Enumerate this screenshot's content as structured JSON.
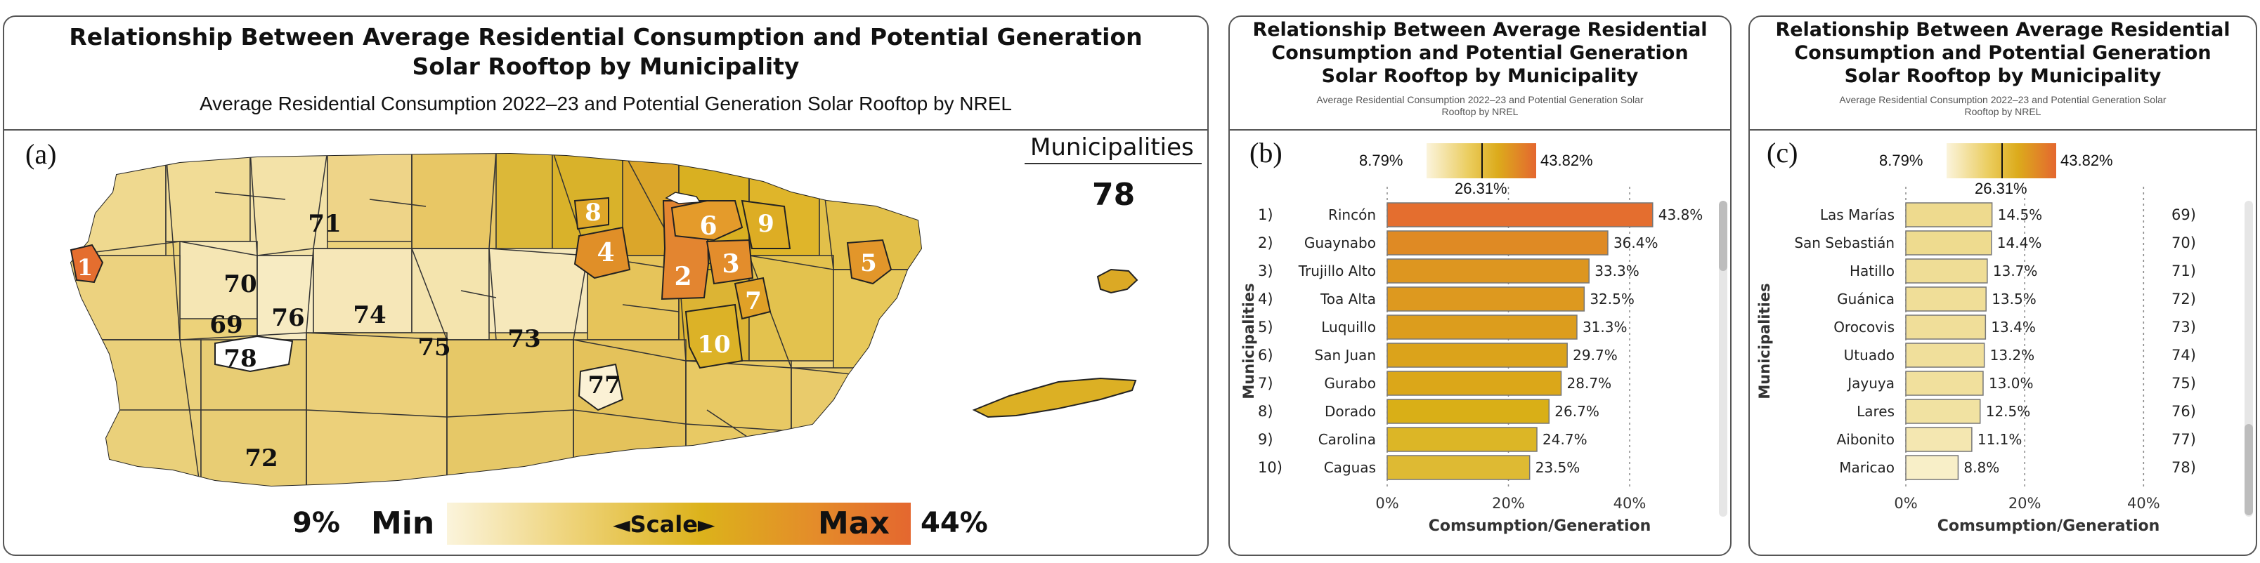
{
  "colors": {
    "min": "#f8efc8",
    "mid": "#d9b016",
    "max": "#e46e2f",
    "panel_border": "#555555",
    "map_fill_base": "#e9c96b"
  },
  "panel_a": {
    "title": "Relationship Between Average Residential Consumption and Potential Generation Solar Rooftop by Municipality",
    "subtitle": "Average Residential Consumption 2022–23 and Potential Generation  Solar Rooftop by NREL",
    "label": "(a)",
    "kpi_label": "Municipalities",
    "kpi_value": "78",
    "legend": {
      "min_pct": "9%",
      "min_label": "Min",
      "scale_label": "◄Scale►",
      "max_label": "Max",
      "max_pct": "44%"
    },
    "rank_labels": [
      "1",
      "2",
      "3",
      "4",
      "5",
      "6",
      "7",
      "8",
      "9",
      "10",
      "69",
      "70",
      "71",
      "72",
      "73",
      "74",
      "75",
      "76",
      "77",
      "78"
    ]
  },
  "panel_b": {
    "title": "Relationship Between Average Residential Consumption and Potential Generation Solar Rooftop by Municipality",
    "subtitle": "Average Residential Consumption 2022–23 and Potential Generation Solar Rooftop by NREL",
    "label": "(b)",
    "gradient": {
      "min": "8.79%",
      "mid": "26.31%",
      "max": "43.82%"
    }
  },
  "panel_c": {
    "title": "Relationship Between Average Residential Consumption and Potential Generation Solar Rooftop by Municipality",
    "subtitle": "Average Residential Consumption 2022–23 and Potential Generation Solar Rooftop by NREL",
    "label": "(c)",
    "gradient": {
      "min": "8.79%",
      "mid": "26.31%",
      "max": "43.82%"
    }
  },
  "chart_data": [
    {
      "type": "bar",
      "orientation": "horizontal",
      "title": "Relationship Between Average Residential Consumption and Potential Generation Solar Rooftop by Municipality",
      "ranks": [
        "1)",
        "2)",
        "3)",
        "4)",
        "5)",
        "6)",
        "7)",
        "8)",
        "9)",
        "10)"
      ],
      "categories": [
        "Rincón",
        "Guaynabo",
        "Trujillo Alto",
        "Toa Alta",
        "Luquillo",
        "San Juan",
        "Gurabo",
        "Dorado",
        "Carolina",
        "Caguas"
      ],
      "values": [
        43.8,
        36.4,
        33.3,
        32.5,
        31.3,
        29.7,
        28.7,
        26.7,
        24.7,
        23.5
      ],
      "value_labels": [
        "43.8%",
        "36.4%",
        "33.3%",
        "32.5%",
        "31.3%",
        "29.7%",
        "28.7%",
        "26.7%",
        "24.7%",
        "23.5%"
      ],
      "xlabel": "Comsumption/Generation",
      "ylabel": "Municipalities",
      "xticks": [
        "0%",
        "20%",
        "40%"
      ],
      "xlim": [
        0,
        48
      ]
    },
    {
      "type": "bar",
      "orientation": "horizontal",
      "title": "Relationship Between Average Residential Consumption and Potential Generation Solar Rooftop by Municipality",
      "ranks": [
        "69)",
        "70)",
        "71)",
        "72)",
        "73)",
        "74)",
        "75)",
        "76)",
        "77)",
        "78)"
      ],
      "categories": [
        "Las Marías",
        "San Sebastián",
        "Hatillo",
        "Guánica",
        "Orocovis",
        "Utuado",
        "Jayuya",
        "Lares",
        "Aibonito",
        "Maricao"
      ],
      "values": [
        14.5,
        14.4,
        13.7,
        13.5,
        13.4,
        13.2,
        13.0,
        12.5,
        11.1,
        8.8
      ],
      "value_labels": [
        "14.5%",
        "14.4%",
        "13.7%",
        "13.5%",
        "13.4%",
        "13.2%",
        "13.0%",
        "12.5%",
        "11.1%",
        "8.8%"
      ],
      "xlabel": "Comsumption/Generation",
      "ylabel": "Municipalities",
      "xticks": [
        "0%",
        "20%",
        "40%"
      ],
      "xlim": [
        0,
        48
      ]
    }
  ]
}
